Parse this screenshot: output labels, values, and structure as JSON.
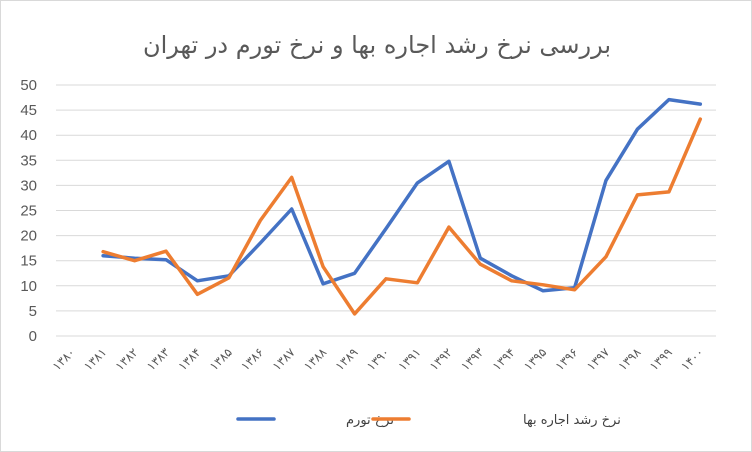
{
  "chart_data": {
    "type": "line",
    "title": "بررسی نرخ رشد اجاره بها و نرخ تورم در تهران",
    "categories": [
      "۱۳۸۰",
      "۱۳۸۱",
      "۱۳۸۲",
      "۱۳۸۳",
      "۱۳۸۴",
      "۱۳۸۵",
      "۱۳۸۶",
      "۱۳۸۷",
      "۱۳۸۸",
      "۱۳۸۹",
      "۱۳۹۰",
      "۱۳۹۱",
      "۱۳۹۲",
      "۱۳۹۳",
      "۱۳۹۴",
      "۱۳۹۵",
      "۱۳۹۶",
      "۱۳۹۷",
      "۱۳۹۸",
      "۱۳۹۹",
      "۱۴۰۰"
    ],
    "series": [
      {
        "name": "نرخ تورم",
        "color": "#4472c4",
        "values": [
          null,
          16,
          15.5,
          15.2,
          11,
          12,
          18.5,
          25.3,
          10.4,
          12.5,
          21.4,
          30.5,
          34.8,
          15.5,
          12,
          9,
          9.6,
          31,
          41.2,
          47.1,
          46.2
        ]
      },
      {
        "name": "نرخ رشد اجاره بها",
        "color": "#ed7d31",
        "values": [
          null,
          16.8,
          15,
          16.9,
          8.3,
          11.6,
          23,
          31.6,
          13.8,
          4.4,
          11.4,
          10.6,
          21.7,
          14.3,
          11,
          10.2,
          9.2,
          15.8,
          28.1,
          28.7,
          43.2
        ]
      }
    ],
    "ylim": [
      0,
      50
    ],
    "yticks": [
      0,
      5,
      10,
      15,
      20,
      25,
      30,
      35,
      40,
      45,
      50
    ],
    "grid": true,
    "legend": "bottom",
    "xlabel": "",
    "ylabel": ""
  }
}
